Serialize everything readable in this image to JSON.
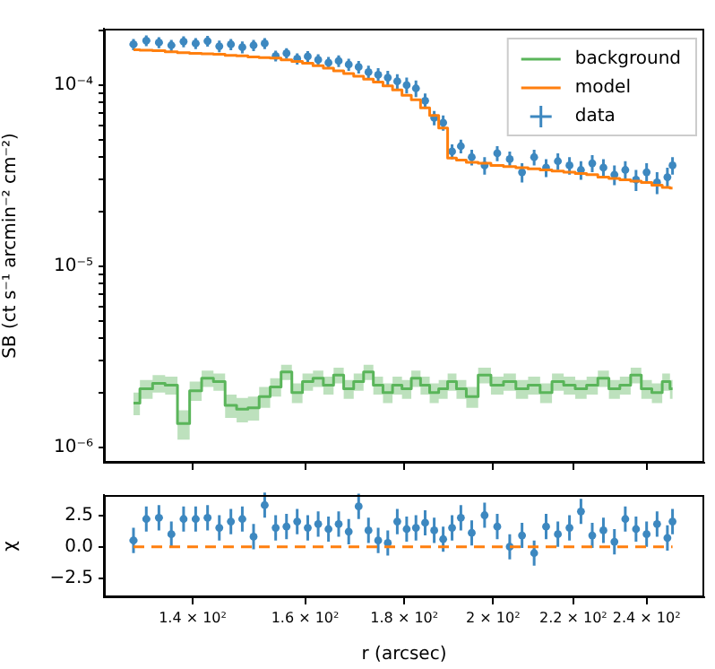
{
  "chart_data": [
    {
      "type": "scatter",
      "ylabel": "SB (ct s⁻¹ arcmin⁻² cm⁻²)",
      "log": "xy",
      "legend": "top right",
      "tick_labels": "y",
      "xlim": [
        126,
        257
      ],
      "xticks": [
        {
          "value": 140,
          "label": null
        },
        {
          "value": 160,
          "label": null
        },
        {
          "value": 180,
          "label": null
        },
        {
          "value": 200,
          "label": null
        },
        {
          "value": 220,
          "label": null
        },
        {
          "value": 240,
          "label": null
        }
      ],
      "ylim": [
        8.2e-07,
        0.000205
      ],
      "yticks": [
        {
          "value": 1e-06,
          "label": "10⁻⁶"
        },
        {
          "value": 2e-06,
          "label": null
        },
        {
          "value": 3e-06,
          "label": null
        },
        {
          "value": 4e-06,
          "label": null
        },
        {
          "value": 5e-06,
          "label": null
        },
        {
          "value": 6e-06,
          "label": null
        },
        {
          "value": 7e-06,
          "label": null
        },
        {
          "value": 8e-06,
          "label": null
        },
        {
          "value": 9e-06,
          "label": null
        },
        {
          "value": 1e-05,
          "label": "10⁻⁵"
        },
        {
          "value": 2e-05,
          "label": null
        },
        {
          "value": 3e-05,
          "label": null
        },
        {
          "value": 4e-05,
          "label": null
        },
        {
          "value": 5e-05,
          "label": null
        },
        {
          "value": 6e-05,
          "label": null
        },
        {
          "value": 7e-05,
          "label": null
        },
        {
          "value": 8e-05,
          "label": null
        },
        {
          "value": 9e-05,
          "label": null
        },
        {
          "value": 0.0001,
          "label": "10⁻⁴"
        },
        {
          "value": 0.0002,
          "label": null
        }
      ],
      "x": [
        130.5,
        132.5,
        134.5,
        136.5,
        138.5,
        140.5,
        142.5,
        144.5,
        146.5,
        148.5,
        150.5,
        152.5,
        154.5,
        156.5,
        158.5,
        160.5,
        162.5,
        164.5,
        166.5,
        168.5,
        170.5,
        172.5,
        174.5,
        176.5,
        178.5,
        180.5,
        182.5,
        184.5,
        186.5,
        188.5,
        190.5,
        192.5,
        195,
        198,
        201,
        204,
        207,
        210,
        213,
        216,
        219,
        222,
        225,
        228,
        231,
        234,
        237,
        240,
        243,
        246,
        247.5
      ],
      "series": [
        {
          "name": "background",
          "type": "step",
          "color": "#5ab55a",
          "values": [
            1.75e-06,
            2.1e-06,
            2.25e-06,
            2.2e-06,
            1.35e-06,
            2.05e-06,
            2.4e-06,
            2.3e-06,
            1.7e-06,
            1.62e-06,
            1.65e-06,
            1.9e-06,
            2.15e-06,
            2.6e-06,
            2e-06,
            2.3e-06,
            2.4e-06,
            2.2e-06,
            2.5e-06,
            2.1e-06,
            2.3e-06,
            2.6e-06,
            2.2e-06,
            2e-06,
            2.2e-06,
            2.1e-06,
            2.4e-06,
            2.2e-06,
            2e-06,
            2.1e-06,
            2.3e-06,
            2.1e-06,
            1.9e-06,
            2.5e-06,
            2.2e-06,
            2.3e-06,
            2.1e-06,
            2.2e-06,
            2e-06,
            2.3e-06,
            2.2e-06,
            2.1e-06,
            2.2e-06,
            2.4e-06,
            2.1e-06,
            2.2e-06,
            2.5e-06,
            2.1e-06,
            2e-06,
            2.3e-06,
            2.1e-06
          ],
          "lower": [
            1.5e-06,
            1.85e-06,
            2e-06,
            1.95e-06,
            1.1e-06,
            1.8e-06,
            2.15e-06,
            2.05e-06,
            1.45e-06,
            1.37e-06,
            1.4e-06,
            1.65e-06,
            1.9e-06,
            2.35e-06,
            1.75e-06,
            2.05e-06,
            2.15e-06,
            1.95e-06,
            2.25e-06,
            1.85e-06,
            2.05e-06,
            2.35e-06,
            1.95e-06,
            1.75e-06,
            1.95e-06,
            1.85e-06,
            2.15e-06,
            1.95e-06,
            1.75e-06,
            1.85e-06,
            2.05e-06,
            1.85e-06,
            1.65e-06,
            2.25e-06,
            1.95e-06,
            2.05e-06,
            1.85e-06,
            1.95e-06,
            1.75e-06,
            2.05e-06,
            1.95e-06,
            1.85e-06,
            1.95e-06,
            2.15e-06,
            1.85e-06,
            1.95e-06,
            2.25e-06,
            1.85e-06,
            1.75e-06,
            2.05e-06,
            1.85e-06
          ],
          "upper": [
            2e-06,
            2.35e-06,
            2.5e-06,
            2.45e-06,
            1.6e-06,
            2.3e-06,
            2.65e-06,
            2.55e-06,
            1.95e-06,
            1.87e-06,
            1.9e-06,
            2.15e-06,
            2.4e-06,
            2.85e-06,
            2.25e-06,
            2.55e-06,
            2.65e-06,
            2.45e-06,
            2.75e-06,
            2.35e-06,
            2.55e-06,
            2.85e-06,
            2.45e-06,
            2.25e-06,
            2.45e-06,
            2.35e-06,
            2.65e-06,
            2.45e-06,
            2.25e-06,
            2.35e-06,
            2.55e-06,
            2.35e-06,
            2.15e-06,
            2.75e-06,
            2.45e-06,
            2.55e-06,
            2.35e-06,
            2.45e-06,
            2.25e-06,
            2.55e-06,
            2.45e-06,
            2.35e-06,
            2.45e-06,
            2.65e-06,
            2.35e-06,
            2.45e-06,
            2.75e-06,
            2.35e-06,
            2.25e-06,
            2.55e-06,
            2.35e-06
          ]
        },
        {
          "name": "model",
          "type": "step",
          "color": "#ff7f0e",
          "values": [
            0.000157,
            0.000156,
            0.000155,
            0.000153,
            0.000151,
            0.00015,
            0.000149,
            0.000148,
            0.000146,
            0.000145,
            0.000143,
            0.000142,
            0.000141,
            0.000138,
            0.000135,
            0.000132,
            0.000128,
            0.000124,
            0.00012,
            0.000116,
            0.000112,
            0.000108,
            0.000104,
            9.9e-05,
            9.4e-05,
            8.8e-05,
            8.3e-05,
            7.5e-05,
            6.8e-05,
            5.8e-05,
            3.95e-05,
            3.85e-05,
            3.75e-05,
            3.7e-05,
            3.6e-05,
            3.55e-05,
            3.5e-05,
            3.45e-05,
            3.4e-05,
            3.35e-05,
            3.3e-05,
            3.25e-05,
            3.2e-05,
            3.1e-05,
            3.05e-05,
            3e-05,
            2.95e-05,
            2.9e-05,
            2.8e-05,
            2.72e-05,
            2.7e-05
          ]
        },
        {
          "name": "data",
          "type": "scatter",
          "marker": "circle",
          "color": "#3d88c0",
          "values": [
            0.000168,
            0.000176,
            0.000172,
            0.000166,
            0.000174,
            0.00017,
            0.000175,
            0.000164,
            0.000168,
            0.000162,
            0.000166,
            0.00017,
            0.000145,
            0.00015,
            0.00014,
            0.000144,
            0.000138,
            0.000133,
            0.000136,
            0.00013,
            0.000126,
            0.000118,
            0.000114,
            0.00011,
            0.000105,
            0.0001,
            9.6e-05,
            8.2e-05,
            6.6e-05,
            6.2e-05,
            4.3e-05,
            4.6e-05,
            4e-05,
            3.6e-05,
            4.2e-05,
            3.9e-05,
            3.3e-05,
            4e-05,
            3.5e-05,
            3.8e-05,
            3.6e-05,
            3.4e-05,
            3.7e-05,
            3.5e-05,
            3.2e-05,
            3.4e-05,
            3e-05,
            3.3e-05,
            2.9e-05,
            3.1e-05,
            3.6e-05
          ],
          "errors": [
            1.2e-05,
            1.2e-05,
            1.2e-05,
            1.2e-05,
            1.2e-05,
            1.2e-05,
            1.2e-05,
            1.2e-05,
            1.2e-05,
            1.2e-05,
            1.2e-05,
            1.2e-05,
            1e-05,
            1e-05,
            1e-05,
            1e-05,
            1e-05,
            1e-05,
            1e-05,
            1e-05,
            1e-05,
            1e-05,
            1e-05,
            1e-05,
            1e-05,
            1e-05,
            1e-05,
            8e-06,
            6e-06,
            6e-06,
            4e-06,
            4e-06,
            4e-06,
            4e-06,
            4e-06,
            4e-06,
            4e-06,
            4e-06,
            4e-06,
            4e-06,
            4e-06,
            4e-06,
            4e-06,
            4e-06,
            4e-06,
            4e-06,
            4e-06,
            4e-06,
            4e-06,
            4e-06,
            4e-06
          ],
          "xerrors": [
            0.6,
            0.6,
            0.6,
            0.6,
            0.6,
            0.6,
            0.6,
            0.6,
            0.6,
            0.6,
            0.6,
            0.6,
            0.6,
            0.6,
            0.6,
            0.6,
            0.6,
            0.6,
            0.6,
            0.6,
            0.6,
            0.6,
            0.6,
            0.6,
            0.6,
            0.6,
            0.6,
            0.6,
            0.6,
            0.6,
            0.6,
            0.6,
            0.6,
            0.6,
            0.6,
            0.6,
            0.6,
            0.6,
            0.6,
            0.6,
            0.6,
            0.6,
            0.6,
            0.6,
            0.6,
            0.6,
            0.6,
            0.6,
            0.6,
            0.6,
            0.6
          ]
        }
      ]
    },
    {
      "type": "scatter",
      "xlabel": "r (arcsec)",
      "ylabel": "χ",
      "log": "x",
      "xlim": [
        126,
        257
      ],
      "xticks": [
        {
          "value": 140,
          "label": "1.4 × 10²"
        },
        {
          "value": 160,
          "label": "1.6 × 10²"
        },
        {
          "value": 180,
          "label": "1.8 × 10²"
        },
        {
          "value": 200,
          "label": "2 × 10²"
        },
        {
          "value": 220,
          "label": "2.2 × 10²"
        },
        {
          "value": 240,
          "label": "2.4 × 10²"
        }
      ],
      "ylim": [
        -4,
        4.1
      ],
      "yticks": [
        {
          "value": -2.5,
          "label": "−2.5"
        },
        {
          "value": 0,
          "label": "0.0"
        },
        {
          "value": 2.5,
          "label": "2.5"
        }
      ],
      "x": [
        130.5,
        132.5,
        134.5,
        136.5,
        138.5,
        140.5,
        142.5,
        144.5,
        146.5,
        148.5,
        150.5,
        152.5,
        154.5,
        156.5,
        158.5,
        160.5,
        162.5,
        164.5,
        166.5,
        168.5,
        170.5,
        172.5,
        174.5,
        176.5,
        178.5,
        180.5,
        182.5,
        184.5,
        186.5,
        188.5,
        190.5,
        192.5,
        195,
        198,
        201,
        204,
        207,
        210,
        213,
        216,
        219,
        222,
        225,
        228,
        231,
        234,
        237,
        240,
        243,
        246,
        247.5
      ],
      "series": [
        {
          "type": "line",
          "line_style": "dashed",
          "color": "#ff7f0e",
          "x": [
            130.5,
            247.5
          ],
          "values": [
            0,
            0
          ]
        },
        {
          "type": "scatter",
          "marker": "circle",
          "color": "#3d88c0",
          "values": [
            0.5,
            2.2,
            2.3,
            1.0,
            2.2,
            2.2,
            2.3,
            1.5,
            2.0,
            2.2,
            0.8,
            3.3,
            1.5,
            1.6,
            2.0,
            1.5,
            1.8,
            1.4,
            1.8,
            1.2,
            3.2,
            1.3,
            0.5,
            0.3,
            2.0,
            1.4,
            1.5,
            1.9,
            1.3,
            0.6,
            1.5,
            2.3,
            1.1,
            2.5,
            1.6,
            0.0,
            0.9,
            -0.5,
            1.6,
            1.0,
            1.5,
            2.8,
            0.9,
            1.3,
            0.4,
            2.2,
            1.4,
            1.0,
            1.8,
            0.7,
            2.0
          ],
          "errors": [
            1,
            1,
            1,
            1,
            1,
            1,
            1,
            1,
            1,
            1,
            1,
            1,
            1,
            1,
            1,
            1,
            1,
            1,
            1,
            1,
            1,
            1,
            1,
            1,
            1,
            1,
            1,
            1,
            1,
            1,
            1,
            1,
            1,
            1,
            1,
            1,
            1,
            1,
            1,
            1,
            1,
            1,
            1,
            1,
            1,
            1,
            1,
            1,
            1,
            1,
            1
          ],
          "xerrors": [
            0.6,
            0.6,
            0.6,
            0.6,
            0.6,
            0.6,
            0.6,
            0.6,
            0.6,
            0.6,
            0.6,
            0.6,
            0.6,
            0.6,
            0.6,
            0.6,
            0.6,
            0.6,
            0.6,
            0.6,
            0.6,
            0.6,
            0.6,
            0.6,
            0.6,
            0.6,
            0.6,
            0.6,
            0.6,
            0.6,
            0.6,
            0.6,
            0.6,
            0.6,
            0.6,
            0.6,
            0.6,
            0.6,
            0.6,
            0.6,
            0.6,
            0.6,
            0.6,
            0.6,
            0.6,
            0.6,
            0.6,
            0.6,
            0.6,
            0.6,
            0.6
          ]
        }
      ]
    }
  ]
}
